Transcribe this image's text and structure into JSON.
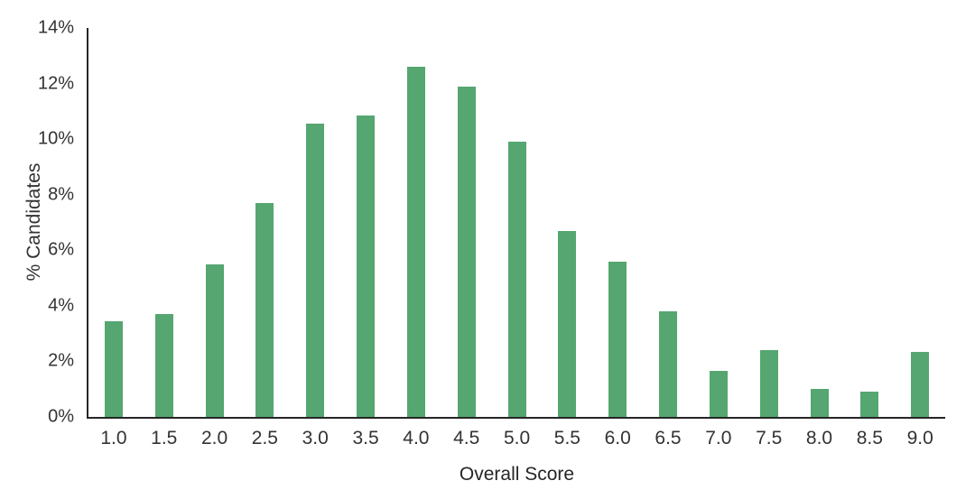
{
  "chart_data": {
    "type": "bar",
    "title": "",
    "xlabel": "Overall Score",
    "ylabel": "% Candidates",
    "categories": [
      "1.0",
      "1.5",
      "2.0",
      "2.5",
      "3.0",
      "3.5",
      "4.0",
      "4.5",
      "5.0",
      "5.5",
      "6.0",
      "6.5",
      "7.0",
      "7.5",
      "8.0",
      "8.5",
      "9.0"
    ],
    "values": [
      3.45,
      3.7,
      5.5,
      7.7,
      10.55,
      10.85,
      12.6,
      11.9,
      9.9,
      6.7,
      5.6,
      3.8,
      1.65,
      2.4,
      1.0,
      0.9,
      2.35
    ],
    "ylim": [
      0,
      14
    ],
    "ytick_step": 2,
    "ytick_labels": [
      "0%",
      "2%",
      "4%",
      "6%",
      "8%",
      "10%",
      "12%",
      "14%"
    ],
    "grid": false,
    "legend": "none",
    "bar_color": "#55a670",
    "axis_color": "#262626"
  }
}
